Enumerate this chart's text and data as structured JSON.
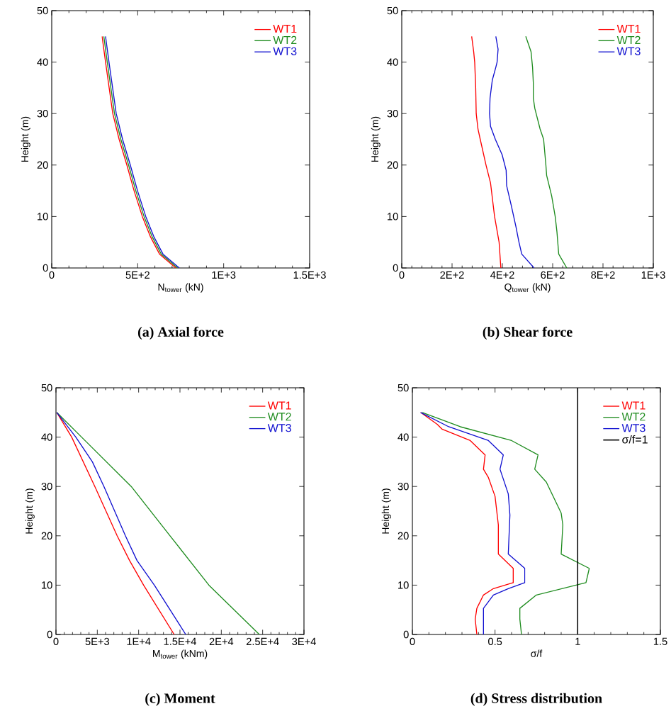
{
  "chart_data": [
    {
      "type": "line",
      "title": "(a)  Axial force",
      "xlabel": "N$_{tower}$ (kN)",
      "ylabel": "Height (m)",
      "xlim": [
        0,
        1500
      ],
      "ylim": [
        0,
        50
      ],
      "xticks": [
        0,
        {
          "value": 500,
          "label": "5E+2"
        },
        {
          "value": 1000,
          "label": "1E+3"
        },
        {
          "value": 1500,
          "label": "1.5E+3"
        }
      ],
      "yticks": [
        0,
        10,
        20,
        30,
        40,
        50
      ],
      "legend": "top right",
      "series": [
        {
          "name": "WT1",
          "color": "#ff0000",
          "x": [
            293,
            313,
            334,
            355,
            392,
            437,
            479,
            527,
            575,
            627,
            722
          ],
          "values": [
            45,
            40,
            35,
            30,
            25,
            20,
            15,
            10,
            6,
            2.7,
            0
          ]
        },
        {
          "name": "WT2",
          "color": "#1f8c1f",
          "x": [
            303,
            323,
            344,
            365,
            402,
            447,
            489,
            537,
            585,
            637,
            732
          ],
          "values": [
            45,
            40,
            35,
            30,
            25,
            20,
            15,
            10,
            6,
            2.7,
            0
          ]
        },
        {
          "name": "WT3",
          "color": "#1010d0",
          "x": [
            313,
            333,
            354,
            375,
            412,
            457,
            499,
            547,
            595,
            647,
            742
          ],
          "values": [
            45,
            40,
            35,
            30,
            25,
            20,
            15,
            10,
            6,
            2.7,
            0
          ]
        }
      ]
    },
    {
      "type": "line",
      "title": "(b)  Shear force",
      "xlabel": "Q$_{tower}$ (kN)",
      "ylabel": "Height (m)",
      "xlim": [
        0,
        1000
      ],
      "ylim": [
        0,
        50
      ],
      "xticks": [
        0,
        {
          "value": 200,
          "label": "2E+2"
        },
        {
          "value": 400,
          "label": "4E+2"
        },
        {
          "value": 600,
          "label": "6E+2"
        },
        {
          "value": 800,
          "label": "8E+2"
        },
        {
          "value": 1000,
          "label": "1E+3"
        }
      ],
      "yticks": [
        0,
        10,
        20,
        30,
        40,
        50
      ],
      "legend": "top right",
      "series": [
        {
          "name": "WT1",
          "color": "#ff0000",
          "x": [
            278,
            286,
            290,
            294,
            296,
            303,
            312,
            335,
            353,
            369,
            387,
            394
          ],
          "values": [
            45,
            42,
            40,
            35,
            30,
            27,
            25,
            20,
            16.5,
            10,
            5,
            0
          ]
        },
        {
          "name": "WT2",
          "color": "#1f8c1f",
          "x": [
            493,
            514,
            520,
            523,
            523,
            529,
            550,
            564,
            573,
            576,
            596,
            610,
            617,
            624,
            656
          ],
          "values": [
            45,
            42,
            39,
            36,
            33,
            31,
            27,
            25,
            20,
            18,
            14,
            10,
            7,
            2.7,
            0
          ]
        },
        {
          "name": "WT3",
          "color": "#1010d0",
          "x": [
            374,
            383,
            379,
            374,
            360,
            351,
            349,
            353,
            372,
            399,
            415,
            417,
            436,
            454,
            466,
            477,
            526
          ],
          "values": [
            45,
            42.5,
            40,
            39,
            36.5,
            33,
            30,
            27.5,
            25,
            22,
            19,
            16,
            12,
            8,
            5,
            2.7,
            0
          ]
        }
      ]
    },
    {
      "type": "line",
      "title": "(c)  Moment",
      "xlabel": "M$_{tower}$ (kNm)",
      "ylabel": "Height (m)",
      "xlim": [
        0,
        30000
      ],
      "ylim": [
        0,
        50
      ],
      "xticks": [
        0,
        {
          "value": 5000,
          "label": "5E+3"
        },
        {
          "value": 10000,
          "label": "1E+4"
        },
        {
          "value": 15000,
          "label": "1.5E+4"
        },
        {
          "value": 20000,
          "label": "2E+4"
        },
        {
          "value": 25000,
          "label": "2.5E+4"
        },
        {
          "value": 30000,
          "label": "3E+4"
        }
      ],
      "yticks": [
        0,
        10,
        20,
        30,
        40,
        50
      ],
      "legend": "top right",
      "series": [
        {
          "name": "WT1",
          "color": "#ff0000",
          "x": [
            100,
            1900,
            4700,
            7400,
            8900,
            10600,
            14300
          ],
          "values": [
            45,
            40,
            30,
            20,
            15,
            10,
            0
          ]
        },
        {
          "name": "WT2",
          "color": "#1f8c1f",
          "x": [
            100,
            3100,
            9100,
            13800,
            18500,
            24600
          ],
          "values": [
            45,
            40,
            30,
            20,
            10,
            0
          ]
        },
        {
          "name": "WT3",
          "color": "#1010d0",
          "x": [
            100,
            2400,
            4400,
            5800,
            8400,
            9800,
            11900,
            15700
          ],
          "values": [
            45,
            40,
            35,
            30,
            20,
            15,
            10,
            0
          ]
        }
      ]
    },
    {
      "type": "line",
      "title": "(d)  Stress distribution",
      "xlabel": "σ/f",
      "ylabel": "Height (m)",
      "xlim": [
        0,
        1.5
      ],
      "ylim": [
        0,
        50
      ],
      "xticks": [
        0,
        0.5,
        1,
        1.5
      ],
      "yticks": [
        0,
        10,
        20,
        30,
        40,
        50
      ],
      "legend": "top right",
      "ref_lines": [
        {
          "axis": "x",
          "value": 1,
          "label": "σ/f=1",
          "color": "#000000"
        }
      ],
      "series": [
        {
          "name": "WT1",
          "color": "#ff0000",
          "x": [
            0.05,
            0.15,
            0.18,
            0.35,
            0.44,
            0.43,
            0.46,
            0.5,
            0.52,
            0.52,
            0.61,
            0.61,
            0.49,
            0.43,
            0.39,
            0.38,
            0.39
          ],
          "values": [
            45,
            42.6,
            41.6,
            39.3,
            36.4,
            33.5,
            31.8,
            28,
            22.2,
            16.3,
            13.4,
            10.5,
            9.3,
            8,
            5.3,
            3.1,
            0
          ]
        },
        {
          "name": "WT2",
          "color": "#1f8c1f",
          "x": [
            0.06,
            0.29,
            0.6,
            0.76,
            0.74,
            0.81,
            0.9,
            0.91,
            0.9,
            1.07,
            1.05,
            0.75,
            0.65,
            0.65,
            0.66
          ],
          "values": [
            45,
            42.1,
            39.3,
            36.4,
            33.5,
            30.9,
            24.6,
            22.2,
            16.3,
            13.4,
            10.5,
            8,
            5.3,
            3.1,
            0
          ]
        },
        {
          "name": "WT3",
          "color": "#1010d0",
          "x": [
            0.05,
            0.22,
            0.46,
            0.55,
            0.53,
            0.58,
            0.59,
            0.58,
            0.68,
            0.68,
            0.58,
            0.49,
            0.43,
            0.43
          ],
          "values": [
            45,
            42.1,
            39.3,
            36.4,
            33.5,
            28.5,
            24.2,
            16.3,
            13.4,
            10.5,
            9.3,
            8,
            5.3,
            0
          ]
        }
      ]
    }
  ]
}
